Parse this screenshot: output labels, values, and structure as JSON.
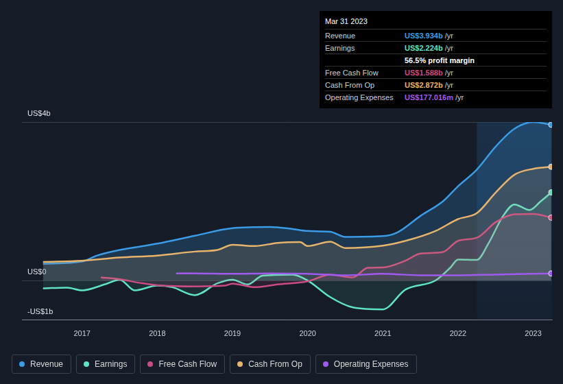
{
  "chart_data": {
    "type": "line",
    "xlim": [
      2016.2,
      2023.25
    ],
    "xticks": [
      2017,
      2018,
      2019,
      2020,
      2021,
      2022,
      2023
    ],
    "ylim": [
      -1,
      4
    ],
    "yticks": [
      {
        "value": -1,
        "label": "-US$1b"
      },
      {
        "value": 0,
        "label": "US$0"
      },
      {
        "value": 4,
        "label": "US$4b"
      }
    ],
    "grid": true,
    "legend": "bottom",
    "shaded_from": 2022.25,
    "series": [
      {
        "name": "Revenue",
        "color": "#3a9ce6",
        "x": [
          2016.48,
          2017,
          2017.2,
          2017.5,
          2018,
          2018.5,
          2019,
          2019.5,
          2019.8,
          2020,
          2020.3,
          2020.5,
          2021,
          2021.2,
          2021.5,
          2021.8,
          2022,
          2022.25,
          2022.5,
          2022.75,
          2023,
          2023.24
        ],
        "values": [
          0.42,
          0.48,
          0.63,
          0.77,
          0.93,
          1.13,
          1.32,
          1.35,
          1.3,
          1.25,
          1.23,
          1.1,
          1.12,
          1.22,
          1.63,
          2.0,
          2.38,
          2.8,
          3.38,
          3.83,
          4.0,
          3.934
        ]
      },
      {
        "name": "Earnings",
        "color": "#5fe3c6",
        "x": [
          2016.48,
          2016.8,
          2017,
          2017.3,
          2017.5,
          2017.7,
          2018,
          2018.2,
          2018.5,
          2018.8,
          2019,
          2019.2,
          2019.4,
          2019.8,
          2020,
          2020.3,
          2020.6,
          2021,
          2021.3,
          2021.7,
          2021.9,
          2022,
          2022.25,
          2022.4,
          2022.6,
          2022.75,
          2022.95,
          2023.1,
          2023.24
        ],
        "values": [
          -0.2,
          -0.18,
          -0.25,
          -0.1,
          0.02,
          -0.25,
          -0.13,
          -0.17,
          -0.37,
          -0.07,
          0.02,
          -0.1,
          0.12,
          0.15,
          0,
          -0.42,
          -0.68,
          -0.73,
          -0.23,
          0,
          0.33,
          0.53,
          0.52,
          0.92,
          1.63,
          1.92,
          1.78,
          2.0,
          2.224
        ]
      },
      {
        "name": "Free Cash Flow",
        "color": "#c94b84",
        "x": [
          2017.25,
          2017.5,
          2017.8,
          2018,
          2018.5,
          2018.9,
          2019,
          2019.3,
          2019.6,
          2020,
          2020.3,
          2020.6,
          2020.8,
          2021,
          2021.3,
          2021.5,
          2021.8,
          2022,
          2022.25,
          2022.5,
          2022.75,
          2023,
          2023.24
        ],
        "values": [
          0.08,
          0.03,
          -0.07,
          -0.12,
          -0.15,
          -0.13,
          -0.08,
          -0.17,
          -0.1,
          -0.02,
          0.15,
          0.08,
          0.32,
          0.33,
          0.5,
          0.68,
          0.72,
          1.0,
          1.08,
          1.47,
          1.67,
          1.68,
          1.588
        ]
      },
      {
        "name": "Cash From Op",
        "color": "#e8b46c",
        "x": [
          2016.48,
          2017,
          2017.5,
          2018,
          2018.5,
          2018.8,
          2019,
          2019.3,
          2019.6,
          2019.9,
          2020,
          2020.3,
          2020.5,
          2021,
          2021.3,
          2021.7,
          2022,
          2022.25,
          2022.5,
          2022.75,
          2023,
          2023.24
        ],
        "values": [
          0.47,
          0.5,
          0.58,
          0.63,
          0.73,
          0.77,
          0.9,
          0.87,
          0.95,
          0.97,
          0.87,
          0.98,
          0.82,
          0.88,
          1.0,
          1.25,
          1.55,
          1.7,
          2.22,
          2.67,
          2.82,
          2.872
        ]
      },
      {
        "name": "Operating Expenses",
        "color": "#a05af0",
        "x": [
          2018.25,
          2018.5,
          2019,
          2019.5,
          2020,
          2020.5,
          2021,
          2021.5,
          2022,
          2022.5,
          2023,
          2023.24
        ],
        "values": [
          0.18,
          0.18,
          0.17,
          0.18,
          0.17,
          0.13,
          0.17,
          0.13,
          0.13,
          0.15,
          0.17,
          0.177
        ]
      }
    ],
    "annotations": {
      "title": "Mar 31 2023",
      "rows": [
        {
          "label": "Revenue",
          "value": "US$3.934b",
          "suffix": "/yr"
        },
        {
          "label": "Earnings",
          "value": "US$2.224b",
          "suffix": "/yr"
        },
        {
          "text": "56.5% profit margin"
        },
        {
          "label": "Free Cash Flow",
          "value": "US$1.588b",
          "suffix": "/yr"
        },
        {
          "label": "Cash From Op",
          "value": "US$2.872b",
          "suffix": "/yr"
        },
        {
          "label": "Operating Expenses",
          "value": "US$177.016m",
          "suffix": "/yr"
        }
      ]
    }
  }
}
